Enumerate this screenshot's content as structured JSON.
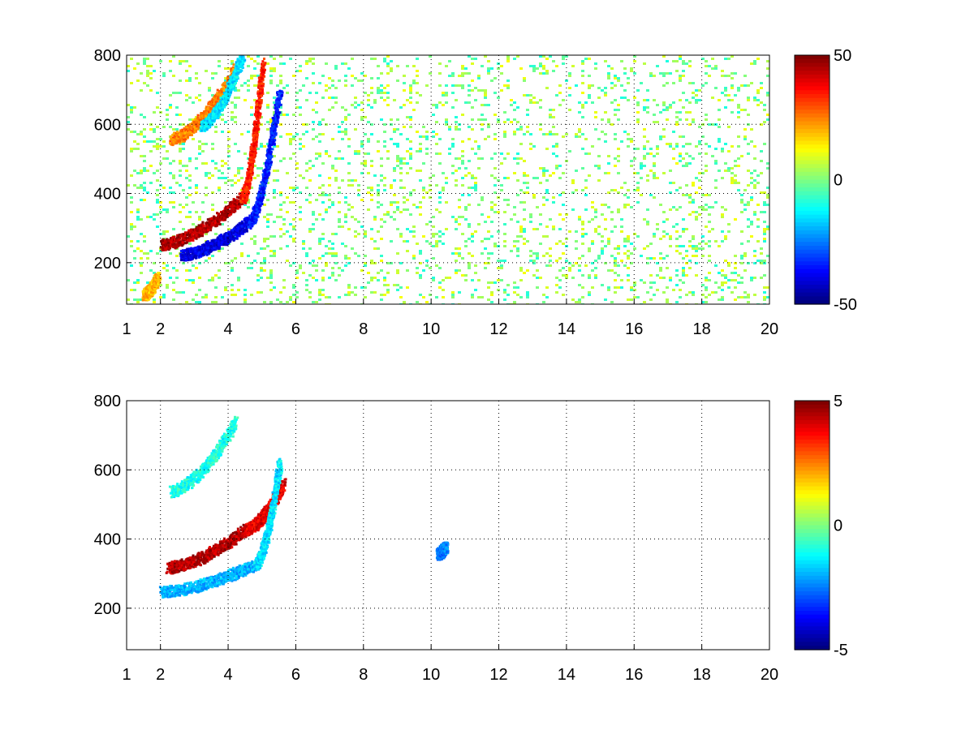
{
  "chart_data": [
    {
      "type": "heatmap",
      "title": "",
      "xlabel": "",
      "ylabel": "",
      "xlim": [
        1,
        20
      ],
      "ylim": [
        80,
        800
      ],
      "xticks": [
        1,
        2,
        4,
        6,
        8,
        10,
        12,
        14,
        16,
        18,
        20
      ],
      "yticks": [
        200,
        400,
        600,
        800
      ],
      "grid": true,
      "colorbar": {
        "colormap": "jet",
        "min": -50,
        "max": 50,
        "ticks": [
          50,
          0,
          -50
        ]
      },
      "features": [
        {
          "x0": 2.0,
          "y0": 255,
          "x1": 4.4,
          "y1": 390,
          "value": 45
        },
        {
          "x0": 4.4,
          "y0": 390,
          "x1": 5.0,
          "y1": 780,
          "value": 35
        },
        {
          "x0": 2.6,
          "y0": 225,
          "x1": 4.6,
          "y1": 320,
          "value": -40
        },
        {
          "x0": 4.6,
          "y0": 320,
          "x1": 5.5,
          "y1": 700,
          "value": -35
        },
        {
          "x0": 2.3,
          "y0": 560,
          "x1": 4.2,
          "y1": 760,
          "value": 25
        },
        {
          "x0": 3.2,
          "y0": 600,
          "x1": 4.4,
          "y1": 800,
          "value": -15
        },
        {
          "x0": 1.5,
          "y0": 110,
          "x1": 1.9,
          "y1": 160,
          "value": 20
        }
      ]
    },
    {
      "type": "heatmap",
      "title": "",
      "xlabel": "",
      "ylabel": "",
      "xlim": [
        1,
        20
      ],
      "ylim": [
        80,
        800
      ],
      "xticks": [
        1,
        2,
        4,
        6,
        8,
        10,
        12,
        14,
        16,
        18,
        20
      ],
      "yticks": [
        200,
        400,
        600,
        800
      ],
      "grid": true,
      "colorbar": {
        "colormap": "jet",
        "min": -5,
        "max": 5,
        "ticks": [
          5,
          0,
          -5
        ]
      },
      "features": [
        {
          "x0": 2.2,
          "y0": 320,
          "x1": 4.5,
          "y1": 430,
          "value": 4.5
        },
        {
          "x0": 4.5,
          "y0": 430,
          "x1": 5.6,
          "y1": 560,
          "value": 4
        },
        {
          "x0": 2.0,
          "y0": 250,
          "x1": 4.8,
          "y1": 330,
          "value": -2
        },
        {
          "x0": 4.8,
          "y0": 330,
          "x1": 5.5,
          "y1": 620,
          "value": -1.5
        },
        {
          "x0": 2.3,
          "y0": 540,
          "x1": 4.2,
          "y1": 740,
          "value": -1
        },
        {
          "x0": 10.2,
          "y0": 360,
          "x1": 10.4,
          "y1": 380,
          "value": -2.5
        }
      ]
    }
  ]
}
